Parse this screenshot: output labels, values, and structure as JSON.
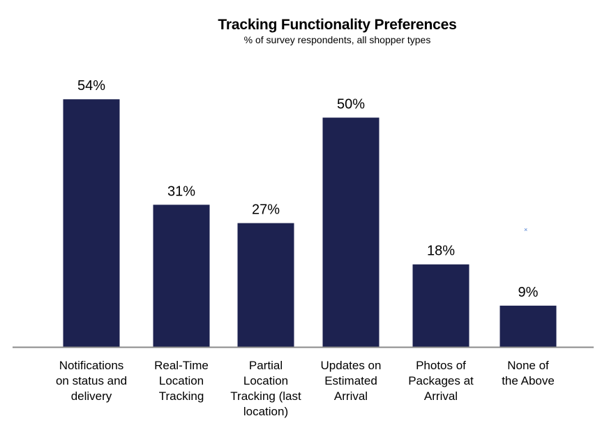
{
  "chart_data": {
    "type": "bar",
    "title": "Tracking Functionality Preferences",
    "subtitle": "% of survey respondents, all shopper types",
    "categories": [
      "Notifications on status and delivery",
      "Real-Time Location Tracking",
      "Partial Location Tracking (last location)",
      "Updates on Estimated Arrival",
      "Photos of Packages at Arrival",
      "None of the Above"
    ],
    "category_lines": [
      [
        "Notifications",
        "on status and",
        "delivery"
      ],
      [
        "Real-Time",
        "Location",
        "Tracking"
      ],
      [
        "Partial",
        "Location",
        "Tracking (last",
        "location)"
      ],
      [
        "Updates on",
        "Estimated",
        "Arrival"
      ],
      [
        "Photos of",
        "Packages at",
        "Arrival"
      ],
      [
        "None of",
        "the Above"
      ]
    ],
    "values": [
      54,
      31,
      27,
      50,
      18,
      9
    ],
    "value_labels": [
      "54%",
      "31%",
      "27%",
      "50%",
      "18%",
      "9%"
    ],
    "ylim": [
      0,
      60
    ],
    "xlabel": "",
    "ylabel": "",
    "grid": false,
    "legend": "none",
    "bar_color": "#1d2250",
    "axis_color": "#8a8a8a",
    "marker_symbol": "×"
  }
}
